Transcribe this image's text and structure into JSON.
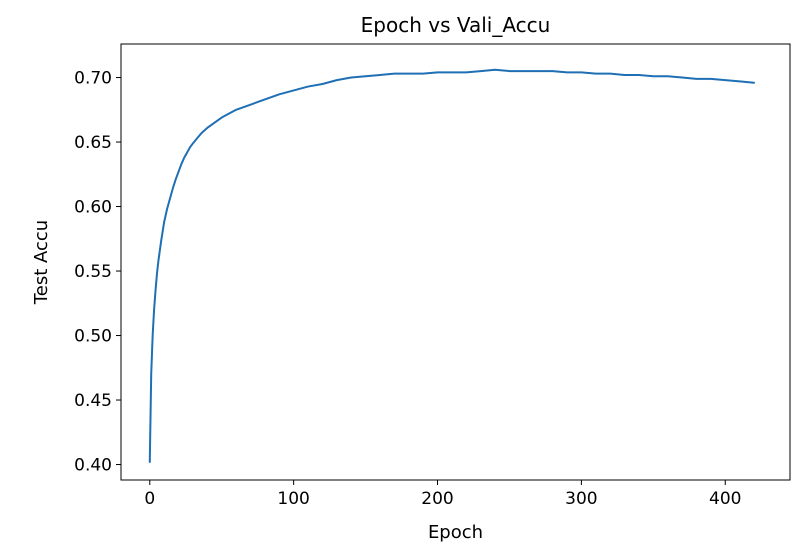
{
  "chart_data": {
    "type": "line",
    "title": "Epoch vs Vali_Accu",
    "xlabel": "Epoch",
    "ylabel": "Test Accu",
    "xlim": [
      -20,
      445
    ],
    "ylim": [
      0.388,
      0.726
    ],
    "x_ticks": [
      0,
      100,
      200,
      300,
      400
    ],
    "x_tick_labels": [
      "0",
      "100",
      "200",
      "300",
      "400"
    ],
    "y_ticks": [
      0.4,
      0.45,
      0.5,
      0.55,
      0.6,
      0.65,
      0.7
    ],
    "y_tick_labels": [
      "0.40",
      "0.45",
      "0.50",
      "0.55",
      "0.60",
      "0.65",
      "0.70"
    ],
    "grid": false,
    "legend": "none",
    "series": [
      {
        "color": "#1f6fb4",
        "x": [
          0,
          1,
          2,
          3,
          4,
          5,
          6,
          7,
          8,
          9,
          10,
          12,
          14,
          16,
          18,
          20,
          22,
          24,
          26,
          28,
          30,
          33,
          36,
          40,
          45,
          50,
          55,
          60,
          70,
          80,
          90,
          100,
          110,
          120,
          130,
          140,
          150,
          160,
          170,
          180,
          190,
          200,
          210,
          220,
          230,
          240,
          250,
          260,
          270,
          280,
          290,
          300,
          310,
          320,
          330,
          340,
          350,
          360,
          370,
          380,
          390,
          400,
          410,
          420
        ],
        "y": [
          0.402,
          0.47,
          0.5,
          0.52,
          0.535,
          0.548,
          0.558,
          0.566,
          0.574,
          0.581,
          0.588,
          0.598,
          0.606,
          0.614,
          0.621,
          0.627,
          0.633,
          0.638,
          0.642,
          0.646,
          0.649,
          0.653,
          0.657,
          0.661,
          0.665,
          0.669,
          0.672,
          0.675,
          0.679,
          0.683,
          0.687,
          0.69,
          0.693,
          0.695,
          0.698,
          0.7,
          0.701,
          0.702,
          0.703,
          0.703,
          0.703,
          0.704,
          0.704,
          0.704,
          0.705,
          0.706,
          0.705,
          0.705,
          0.705,
          0.705,
          0.704,
          0.704,
          0.703,
          0.703,
          0.702,
          0.702,
          0.701,
          0.701,
          0.7,
          0.699,
          0.699,
          0.698,
          0.697,
          0.696
        ]
      }
    ]
  }
}
